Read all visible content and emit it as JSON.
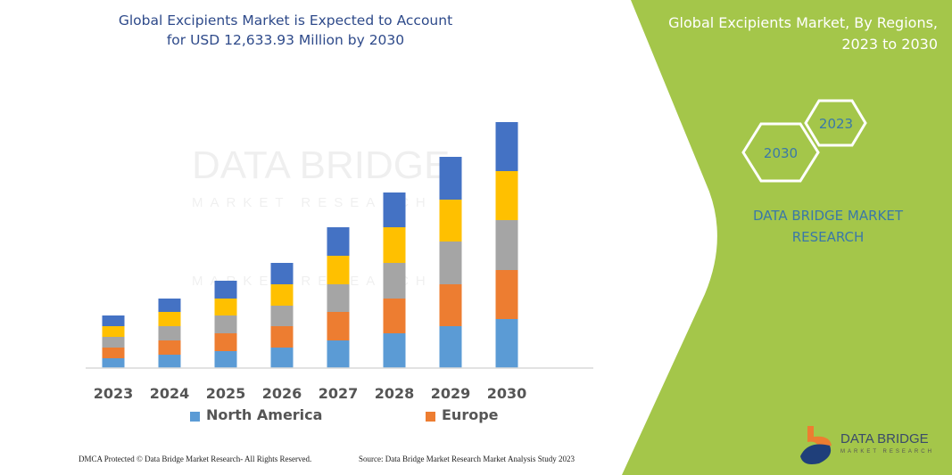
{
  "title": "Global Excipients Market is Expected to Account for USD 12,633.93 Million by 2030",
  "side_panel": {
    "title": "Global Excipients Market, By Regions, 2023 to 2030",
    "hex_labels": [
      "2023",
      "2030"
    ],
    "brand_text": "DATA BRIDGE MARKET RESEARCH",
    "logo_text": "DATA BRIDGE MARKET RESEARCH",
    "background_color": "#A4C64A"
  },
  "footer": {
    "left": "DMCA Protected © Data Bridge Market Research-  All Rights Reserved.",
    "right": "Source: Data Bridge Market Research  Market Analysis Study 2023"
  },
  "watermark": "DATA BRIDGE MARKET RESEARCH",
  "chart_data": {
    "type": "bar",
    "stacked": true,
    "categories": [
      "2023",
      "2024",
      "2025",
      "2026",
      "2027",
      "2028",
      "2029",
      "2030"
    ],
    "series": [
      {
        "name": "North America",
        "color": "#5B9BD5",
        "values": [
          11,
          15,
          19,
          23,
          31,
          39,
          47,
          55
        ]
      },
      {
        "name": "Europe",
        "color": "#ED7D31",
        "values": [
          12,
          16,
          20,
          24,
          32,
          39,
          47,
          55
        ]
      },
      {
        "color": "#A5A5A5",
        "values": [
          12,
          16,
          20,
          23,
          31,
          40,
          48,
          56
        ]
      },
      {
        "color": "#FFC000",
        "values": [
          12,
          16,
          19,
          24,
          32,
          40,
          47,
          55
        ]
      },
      {
        "color": "#4472C4",
        "values": [
          12,
          15,
          20,
          24,
          32,
          39,
          48,
          55
        ]
      }
    ],
    "yaxis_visible": false,
    "grid": false,
    "legend": "bottom"
  }
}
